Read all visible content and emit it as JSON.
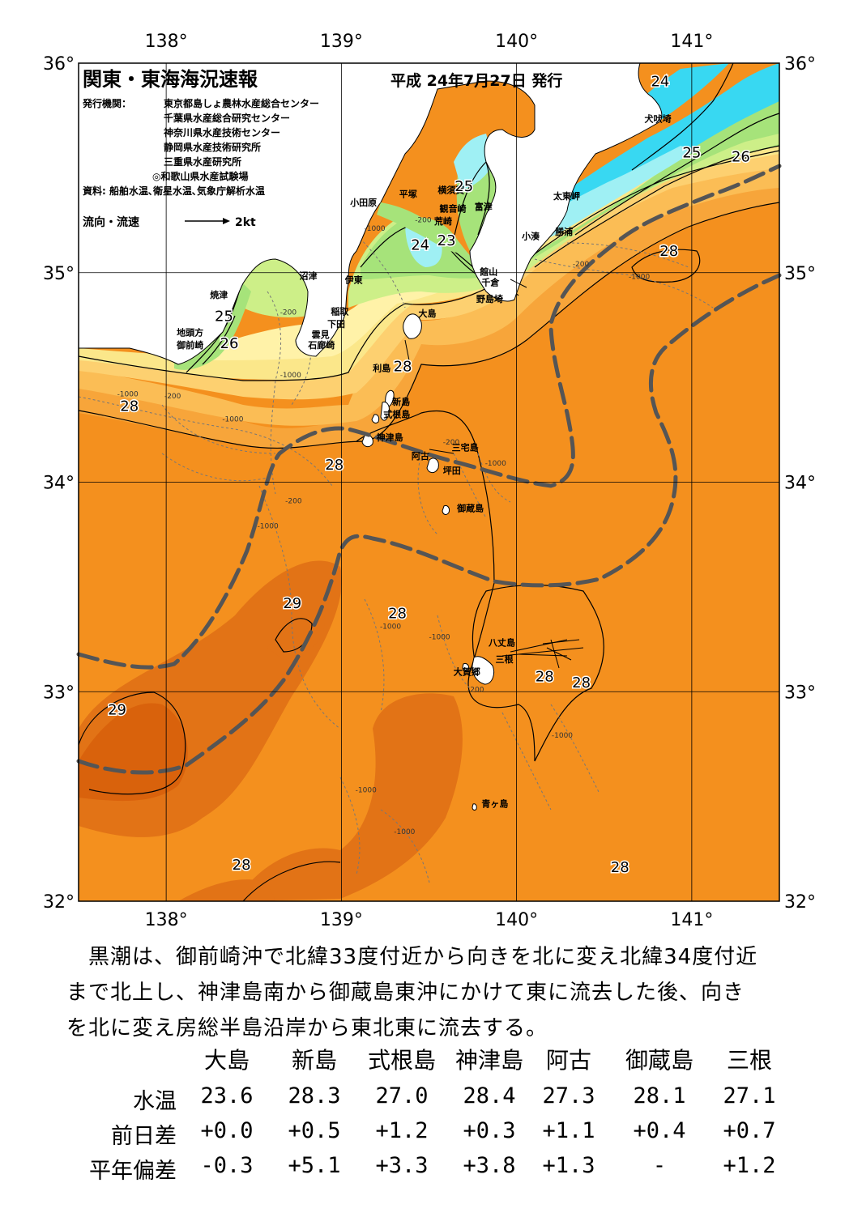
{
  "map": {
    "title": "関東・東海海況速報",
    "issue_date": "平成 24年7月27日 発行",
    "issuer_label": "発行機関：",
    "issuers": [
      "東京都島しょ農林水産総合センター",
      "千葉県水産総合研究センター",
      "神奈川県水産技術センター",
      "静岡県水産技術研究所",
      "三重県水産研究所",
      "◎和歌山県水産試験場"
    ],
    "source": "資料: 船舶水温､衛星水温､気象庁解析水温",
    "flow_legend": "流向・流速",
    "flow_unit": "2kt",
    "lon_labels": [
      "138°",
      "139°",
      "140°",
      "141°"
    ],
    "lat_labels": [
      "36°",
      "35°",
      "34°",
      "33°",
      "32°"
    ],
    "extent": {
      "lon_min": 137.5,
      "lon_max": 141.5,
      "lat_min": 32,
      "lat_max": 36
    },
    "temp_labels": [
      {
        "text": "24",
        "lon": 140.82,
        "lat": 35.89
      },
      {
        "text": "25",
        "lon": 141.0,
        "lat": 35.55
      },
      {
        "text": "26",
        "lon": 141.28,
        "lat": 35.53
      },
      {
        "text": "25",
        "lon": 139.7,
        "lat": 35.39
      },
      {
        "text": "23",
        "lon": 139.6,
        "lat": 35.13
      },
      {
        "text": "24",
        "lon": 139.45,
        "lat": 35.11
      },
      {
        "text": "28",
        "lon": 140.87,
        "lat": 35.08
      },
      {
        "text": "25",
        "lon": 138.33,
        "lat": 34.77
      },
      {
        "text": "26",
        "lon": 138.36,
        "lat": 34.64
      },
      {
        "text": "28",
        "lon": 139.35,
        "lat": 34.53
      },
      {
        "text": "28",
        "lon": 137.79,
        "lat": 34.34
      },
      {
        "text": "28",
        "lon": 138.96,
        "lat": 34.06
      },
      {
        "text": "29",
        "lon": 138.72,
        "lat": 33.4
      },
      {
        "text": "28",
        "lon": 139.32,
        "lat": 33.35
      },
      {
        "text": "28",
        "lon": 140.16,
        "lat": 33.05
      },
      {
        "text": "28",
        "lon": 140.37,
        "lat": 33.02
      },
      {
        "text": "29",
        "lon": 137.72,
        "lat": 32.89
      },
      {
        "text": "28",
        "lon": 138.43,
        "lat": 32.15
      },
      {
        "text": "28",
        "lon": 140.59,
        "lat": 32.14
      }
    ],
    "place_labels": [
      {
        "text": "犬吠埼",
        "lon": 140.73,
        "lat": 35.72
      },
      {
        "text": "太東岬",
        "lon": 140.21,
        "lat": 35.35
      },
      {
        "text": "勝浦",
        "lon": 140.22,
        "lat": 35.18
      },
      {
        "text": "小湊",
        "lon": 140.03,
        "lat": 35.16
      },
      {
        "text": "富津",
        "lon": 139.76,
        "lat": 35.3
      },
      {
        "text": "横須賀",
        "lon": 139.55,
        "lat": 35.38
      },
      {
        "text": "観音崎",
        "lon": 139.56,
        "lat": 35.29
      },
      {
        "text": "荒崎",
        "lon": 139.53,
        "lat": 35.23
      },
      {
        "text": "平塚",
        "lon": 139.33,
        "lat": 35.36
      },
      {
        "text": "小田原",
        "lon": 139.05,
        "lat": 35.32
      },
      {
        "text": "沼津",
        "lon": 138.76,
        "lat": 34.97
      },
      {
        "text": "伊東",
        "lon": 139.02,
        "lat": 34.95
      },
      {
        "text": "館山",
        "lon": 139.79,
        "lat": 34.99
      },
      {
        "text": "千倉",
        "lon": 139.8,
        "lat": 34.94
      },
      {
        "text": "野島埼",
        "lon": 139.77,
        "lat": 34.86
      },
      {
        "text": "大島",
        "lon": 139.44,
        "lat": 34.79
      },
      {
        "text": "稲取",
        "lon": 138.94,
        "lat": 34.8
      },
      {
        "text": "下田",
        "lon": 138.92,
        "lat": 34.74
      },
      {
        "text": "雲見",
        "lon": 138.83,
        "lat": 34.69
      },
      {
        "text": "石廊崎",
        "lon": 138.81,
        "lat": 34.64
      },
      {
        "text": "焼津",
        "lon": 138.25,
        "lat": 34.88
      },
      {
        "text": "地頭方",
        "lon": 138.06,
        "lat": 34.7
      },
      {
        "text": "御前崎",
        "lon": 138.06,
        "lat": 34.64
      },
      {
        "text": "利島",
        "lon": 139.18,
        "lat": 34.53
      },
      {
        "text": "新島",
        "lon": 139.29,
        "lat": 34.37
      },
      {
        "text": "式根島",
        "lon": 139.24,
        "lat": 34.31
      },
      {
        "text": "神津島",
        "lon": 139.2,
        "lat": 34.2
      },
      {
        "text": "三宅島",
        "lon": 139.63,
        "lat": 34.15
      },
      {
        "text": "阿古",
        "lon": 139.4,
        "lat": 34.11
      },
      {
        "text": "坪田",
        "lon": 139.58,
        "lat": 34.04
      },
      {
        "text": "御蔵島",
        "lon": 139.66,
        "lat": 33.86
      },
      {
        "text": "八丈島",
        "lon": 139.84,
        "lat": 33.22
      },
      {
        "text": "三根",
        "lon": 139.88,
        "lat": 33.14
      },
      {
        "text": "大賀郷",
        "lon": 139.64,
        "lat": 33.08
      },
      {
        "text": "青ヶ島",
        "lon": 139.8,
        "lat": 32.45
      }
    ],
    "depth_labels": [
      {
        "text": "-1000",
        "lon": 137.72,
        "lat": 34.41
      },
      {
        "text": "-200",
        "lon": 137.99,
        "lat": 34.4
      },
      {
        "text": "-1000",
        "lon": 138.32,
        "lat": 34.29
      },
      {
        "text": "-1000",
        "lon": 138.65,
        "lat": 34.5
      },
      {
        "text": "-200",
        "lon": 138.65,
        "lat": 34.8
      },
      {
        "text": "-1000",
        "lon": 139.13,
        "lat": 35.2
      },
      {
        "text": "-200",
        "lon": 139.42,
        "lat": 35.24
      },
      {
        "text": "-200",
        "lon": 140.32,
        "lat": 35.03
      },
      {
        "text": "-1000",
        "lon": 140.64,
        "lat": 34.97
      },
      {
        "text": "-200",
        "lon": 138.68,
        "lat": 33.9
      },
      {
        "text": "-1000",
        "lon": 138.52,
        "lat": 33.78
      },
      {
        "text": "-1000",
        "lon": 139.22,
        "lat": 33.3
      },
      {
        "text": "-1000",
        "lon": 139.5,
        "lat": 33.25
      },
      {
        "text": "-200",
        "lon": 139.72,
        "lat": 33.0
      },
      {
        "text": "-1000",
        "lon": 140.2,
        "lat": 32.78
      },
      {
        "text": "-1000",
        "lon": 139.08,
        "lat": 32.52
      },
      {
        "text": "-1000",
        "lon": 139.3,
        "lat": 32.32
      },
      {
        "text": "-200",
        "lon": 139.58,
        "lat": 34.18
      },
      {
        "text": "-1000",
        "lon": 139.82,
        "lat": 34.08
      }
    ],
    "colors": {
      "orange_dark": "#d9620c",
      "orange": "#f4901e",
      "orange_light": "#f7a53a",
      "light_orange": "#fbbd55",
      "yellow_orange": "#fdd070",
      "yellow": "#fbe78a",
      "pale_yellow": "#fff2a8",
      "green": "#a6e37a",
      "light_green": "#cdef88",
      "cyan": "#38d8f2",
      "light_cyan": "#9ff0f4",
      "land": "#ffffff",
      "kuroshio_axis": "#555555"
    }
  },
  "description": [
    "　黒潮は、御前崎沖で北緯33度付近から向きを北に変え北緯34度付近",
    "まで北上し、神津島南から御蔵島東沖にかけて東に流去した後、向き",
    "を北に変え房総半島沿岸から東北東に流去する。"
  ],
  "table": {
    "stations": [
      "大島",
      "新島",
      "式根島",
      "神津島",
      "阿古",
      "御蔵島",
      "三根"
    ],
    "rows": [
      {
        "label": "水温",
        "values": [
          "23.6",
          "28.3",
          "27.0",
          "28.4",
          "27.3",
          "28.1",
          "27.1"
        ]
      },
      {
        "label": "前日差",
        "values": [
          "+0.0",
          "+0.5",
          "+1.2",
          "+0.3",
          "+1.1",
          "+0.4",
          "+0.7"
        ]
      },
      {
        "label": "平年偏差",
        "values": [
          "-0.3",
          "+5.1",
          "+3.3",
          "+3.8",
          "+1.3",
          "-",
          "+1.2"
        ]
      }
    ]
  }
}
